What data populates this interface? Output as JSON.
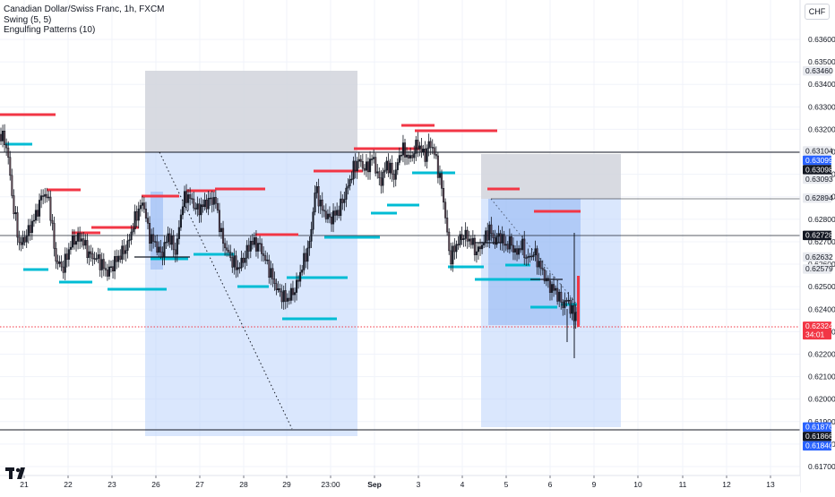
{
  "header": {
    "title": "Canadian Dollar/Swiss Franc, 1h, FXCM",
    "indicators": [
      "Swing (5, 5)",
      "Engulfing Patterns (10)"
    ],
    "currency": "CHF"
  },
  "price_axis": {
    "ticks": [
      "0.63600",
      "0.63500",
      "0.63400",
      "0.63300",
      "0.63200",
      "0.63100",
      "0.63000",
      "0.62900",
      "0.62800",
      "0.62700",
      "0.62600",
      "0.62500",
      "0.62400",
      "0.62300",
      "0.62200",
      "0.62100",
      "0.62000",
      "0.61900",
      "0.61800",
      "0.61700"
    ],
    "labels": [
      {
        "text": "0.63460",
        "style": "grey",
        "price": 0.6346
      },
      {
        "text": "0.63104",
        "style": "grey",
        "price": 0.63104
      },
      {
        "text": "0.63099",
        "style": "blue",
        "price": 0.63099
      },
      {
        "text": "0.63098",
        "style": "dark",
        "price": 0.63098
      },
      {
        "text": "0.63093",
        "style": "grey",
        "price": 0.63093
      },
      {
        "text": "0.62894",
        "style": "grey",
        "price": 0.62894
      },
      {
        "text": "0.62728",
        "style": "dark",
        "price": 0.62728
      },
      {
        "text": "0.62632",
        "style": "grey",
        "price": 0.62632
      },
      {
        "text": "0.62579",
        "style": "grey",
        "price": 0.62579
      },
      {
        "text": "0.62324",
        "style": "red",
        "price": 0.62324,
        "sub": "34:01"
      },
      {
        "text": "0.61876",
        "style": "blue",
        "price": 0.61876
      },
      {
        "text": "0.61866",
        "style": "dark",
        "price": 0.61866
      },
      {
        "text": "0.61840",
        "style": "blue",
        "price": 0.6184
      }
    ]
  },
  "time_axis": [
    "21",
    "22",
    "23",
    "26",
    "27",
    "28",
    "29",
    "23:00",
    "Sep",
    "3",
    "4",
    "5",
    "6",
    "9",
    "10",
    "11",
    "12",
    "13"
  ],
  "colors": {
    "bull_candle": "#089981",
    "bear_candle": "#f23645",
    "candle": "#131722",
    "swing_high": "#f23645",
    "swing_low": "#00bcd4",
    "box_grey": "#d1d4dc",
    "box_blue": "#bbd3fb",
    "current_price": "#f23645"
  }
}
